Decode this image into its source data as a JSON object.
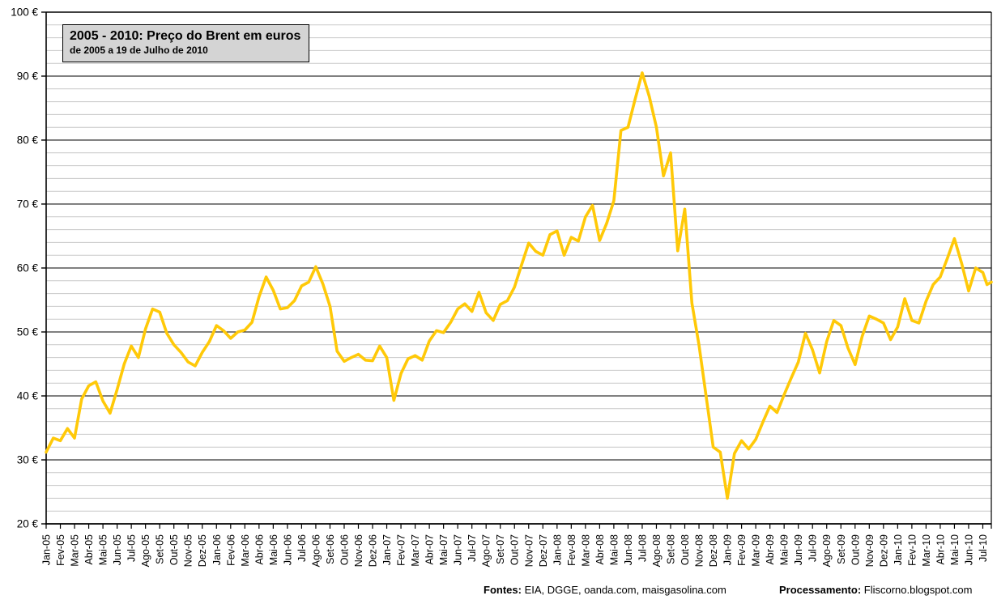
{
  "chart_data": {
    "type": "line",
    "title": "2005 - 2010: Preço do Brent em euros",
    "subtitle": "de 2005 a 19 de Julho de 2010",
    "ylabel": "",
    "xlabel": "",
    "ylim": [
      20,
      100
    ],
    "y_major_step": 10,
    "y_minor_step": 2,
    "grid": "major-black-minor-gray",
    "legend_position": "none",
    "y_tick_labels": [
      "20 €",
      "30 €",
      "40 €",
      "50 €",
      "60 €",
      "70 €",
      "80 €",
      "90 €",
      "100 €"
    ],
    "x_tick_labels": [
      "Jan-05",
      "Fev-05",
      "Mar-05",
      "Abr-05",
      "Mai-05",
      "Jun-05",
      "Jul-05",
      "Ago-05",
      "Set-05",
      "Out-05",
      "Nov-05",
      "Dez-05",
      "Jan-06",
      "Fev-06",
      "Mar-06",
      "Abr-06",
      "Mai-06",
      "Jun-06",
      "Jul-06",
      "Ago-06",
      "Set-06",
      "Out-06",
      "Nov-06",
      "Dez-06",
      "Jan-07",
      "Fev-07",
      "Mar-07",
      "Abr-07",
      "Mai-07",
      "Jun-07",
      "Jul-07",
      "Ago-07",
      "Set-07",
      "Out-07",
      "Nov-07",
      "Dez-07",
      "Jan-08",
      "Fev-08",
      "Mar-08",
      "Abr-08",
      "Mai-08",
      "Jun-08",
      "Jul-08",
      "Ago-08",
      "Set-08",
      "Out-08",
      "Nov-08",
      "Dez-08",
      "Jan-09",
      "Fev-09",
      "Mar-09",
      "Abr-09",
      "Mai-09",
      "Jun-09",
      "Jul-09",
      "Ago-09",
      "Set-09",
      "Out-09",
      "Nov-09",
      "Dez-09",
      "Jan-10",
      "Fev-10",
      "Mar-10",
      "Abr-10",
      "Mai-10",
      "Jun-10",
      "Jul-10"
    ],
    "x_axis_unit": "months_since_jan_2005",
    "x_max": 66.6,
    "series": [
      {
        "name": "Preço do Brent em euros",
        "color": "#FFC908",
        "points": [
          [
            0,
            31.2
          ],
          [
            0.5,
            33.4
          ],
          [
            1,
            33.0
          ],
          [
            1.5,
            34.9
          ],
          [
            2,
            33.4
          ],
          [
            2.5,
            39.5
          ],
          [
            3,
            41.6
          ],
          [
            3.5,
            42.2
          ],
          [
            4,
            39.2
          ],
          [
            4.5,
            37.3
          ],
          [
            5,
            41.0
          ],
          [
            5.5,
            45.0
          ],
          [
            6,
            47.8
          ],
          [
            6.5,
            46.0
          ],
          [
            7,
            50.5
          ],
          [
            7.5,
            53.6
          ],
          [
            8,
            53.1
          ],
          [
            8.5,
            49.8
          ],
          [
            9,
            48.0
          ],
          [
            9.5,
            46.8
          ],
          [
            10,
            45.3
          ],
          [
            10.5,
            44.7
          ],
          [
            11,
            46.8
          ],
          [
            11.5,
            48.5
          ],
          [
            12,
            51.0
          ],
          [
            12.5,
            50.2
          ],
          [
            13,
            49.0
          ],
          [
            13.5,
            50.0
          ],
          [
            14,
            50.3
          ],
          [
            14.5,
            51.5
          ],
          [
            15,
            55.5
          ],
          [
            15.5,
            58.6
          ],
          [
            16,
            56.5
          ],
          [
            16.5,
            53.6
          ],
          [
            17,
            53.8
          ],
          [
            17.5,
            54.9
          ],
          [
            18,
            57.2
          ],
          [
            18.5,
            57.8
          ],
          [
            19,
            60.2
          ],
          [
            19.5,
            57.5
          ],
          [
            20,
            54.0
          ],
          [
            20.5,
            47.0
          ],
          [
            21,
            45.4
          ],
          [
            21.5,
            46.0
          ],
          [
            22,
            46.5
          ],
          [
            22.5,
            45.6
          ],
          [
            23,
            45.5
          ],
          [
            23.5,
            47.8
          ],
          [
            24,
            46.0
          ],
          [
            24.5,
            39.3
          ],
          [
            25,
            43.5
          ],
          [
            25.5,
            45.8
          ],
          [
            26,
            46.3
          ],
          [
            26.5,
            45.6
          ],
          [
            27,
            48.6
          ],
          [
            27.5,
            50.2
          ],
          [
            28,
            49.9
          ],
          [
            28.5,
            51.5
          ],
          [
            29,
            53.6
          ],
          [
            29.5,
            54.4
          ],
          [
            30,
            53.2
          ],
          [
            30.5,
            56.2
          ],
          [
            31,
            53.0
          ],
          [
            31.5,
            51.8
          ],
          [
            32,
            54.3
          ],
          [
            32.5,
            54.9
          ],
          [
            33,
            57.0
          ],
          [
            33.5,
            60.5
          ],
          [
            34,
            63.9
          ],
          [
            34.5,
            62.6
          ],
          [
            35,
            62.0
          ],
          [
            35.5,
            65.2
          ],
          [
            36,
            65.8
          ],
          [
            36.5,
            62.0
          ],
          [
            37,
            64.8
          ],
          [
            37.5,
            64.2
          ],
          [
            38,
            68.0
          ],
          [
            38.5,
            69.8
          ],
          [
            39,
            64.3
          ],
          [
            39.5,
            67.0
          ],
          [
            40,
            70.5
          ],
          [
            40.5,
            81.5
          ],
          [
            41,
            82.0
          ],
          [
            41.5,
            86.4
          ],
          [
            42,
            90.5
          ],
          [
            42.5,
            86.8
          ],
          [
            43,
            82.0
          ],
          [
            43.5,
            74.4
          ],
          [
            44,
            78.0
          ],
          [
            44.5,
            62.7
          ],
          [
            45,
            69.2
          ],
          [
            45.5,
            54.5
          ],
          [
            46,
            48.0
          ],
          [
            46.5,
            40.0
          ],
          [
            47,
            32.0
          ],
          [
            47.5,
            31.2
          ],
          [
            48,
            24.0
          ],
          [
            48.5,
            31.0
          ],
          [
            49,
            33.0
          ],
          [
            49.5,
            31.7
          ],
          [
            50,
            33.2
          ],
          [
            50.5,
            35.9
          ],
          [
            51,
            38.4
          ],
          [
            51.5,
            37.4
          ],
          [
            52,
            40.2
          ],
          [
            52.5,
            42.8
          ],
          [
            53,
            45.3
          ],
          [
            53.5,
            49.8
          ],
          [
            54,
            47.2
          ],
          [
            54.5,
            43.6
          ],
          [
            55,
            48.5
          ],
          [
            55.5,
            51.8
          ],
          [
            56,
            51.0
          ],
          [
            56.5,
            47.5
          ],
          [
            57,
            44.9
          ],
          [
            57.5,
            49.3
          ],
          [
            58,
            52.5
          ],
          [
            58.5,
            52.0
          ],
          [
            59,
            51.4
          ],
          [
            59.5,
            48.8
          ],
          [
            60,
            50.8
          ],
          [
            60.5,
            55.2
          ],
          [
            61,
            51.8
          ],
          [
            61.5,
            51.4
          ],
          [
            62,
            54.8
          ],
          [
            62.5,
            57.4
          ],
          [
            63,
            58.6
          ],
          [
            63.5,
            61.5
          ],
          [
            64,
            64.6
          ],
          [
            64.5,
            60.8
          ],
          [
            65,
            56.4
          ],
          [
            65.5,
            60.0
          ],
          [
            66,
            59.3
          ],
          [
            66.3,
            57.4
          ],
          [
            66.6,
            57.8
          ]
        ]
      }
    ]
  },
  "colors": {
    "line": "#FFC908",
    "major_grid": "#000000",
    "minor_grid": "#c9c9c9",
    "title_box_bg": "#d4d4d4"
  },
  "footer": {
    "fontes_label": "Fontes:",
    "fontes_value": " EIA, DGGE, oanda.com, maisgasolina.com",
    "processamento_label": "Processamento:",
    "processamento_value": " Fliscorno.blogspot.com"
  }
}
